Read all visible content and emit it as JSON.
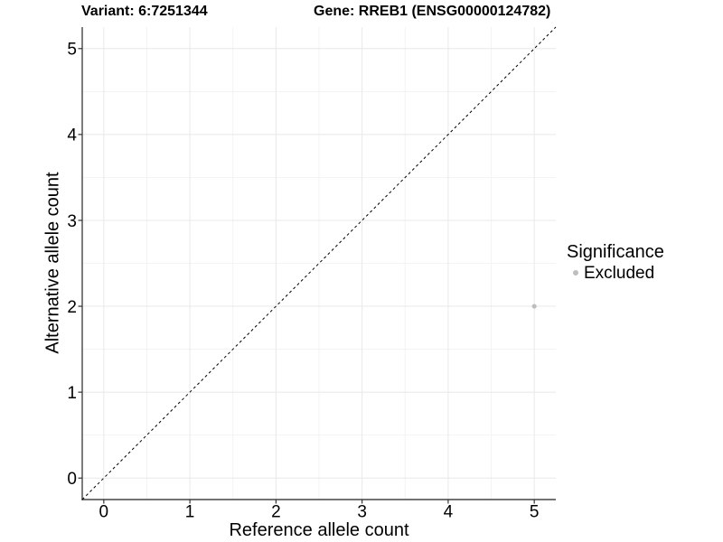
{
  "chart_data": {
    "type": "scatter",
    "title_left": "Variant: 6:7251344",
    "title_right": "Gene: RREB1 (ENSG00000124782)",
    "xlabel": "Reference allele count",
    "ylabel": "Alternative allele count",
    "xlim": [
      -0.25,
      5.25
    ],
    "ylim": [
      -0.25,
      5.25
    ],
    "x_ticks": [
      0,
      1,
      2,
      3,
      4,
      5
    ],
    "y_ticks": [
      0,
      1,
      2,
      3,
      4,
      5
    ],
    "minor_ticks": [
      0.5,
      1.5,
      2.5,
      3.5,
      4.5
    ],
    "grid": true,
    "panel_background": "#ffffff",
    "major_grid_color": "#e8e8e8",
    "minor_grid_color": "#f3f3f3",
    "axis_line_color": "#444444",
    "series": [
      {
        "name": "Excluded",
        "color": "#bebebe",
        "points": [
          {
            "x": 5,
            "y": 2
          }
        ]
      }
    ],
    "reference_line": {
      "type": "identity",
      "style": "dashed",
      "color": "#000000"
    },
    "legend": {
      "title": "Significance",
      "position": "right",
      "items": [
        {
          "label": "Excluded",
          "color": "#bebebe",
          "marker": "circle"
        }
      ]
    }
  }
}
